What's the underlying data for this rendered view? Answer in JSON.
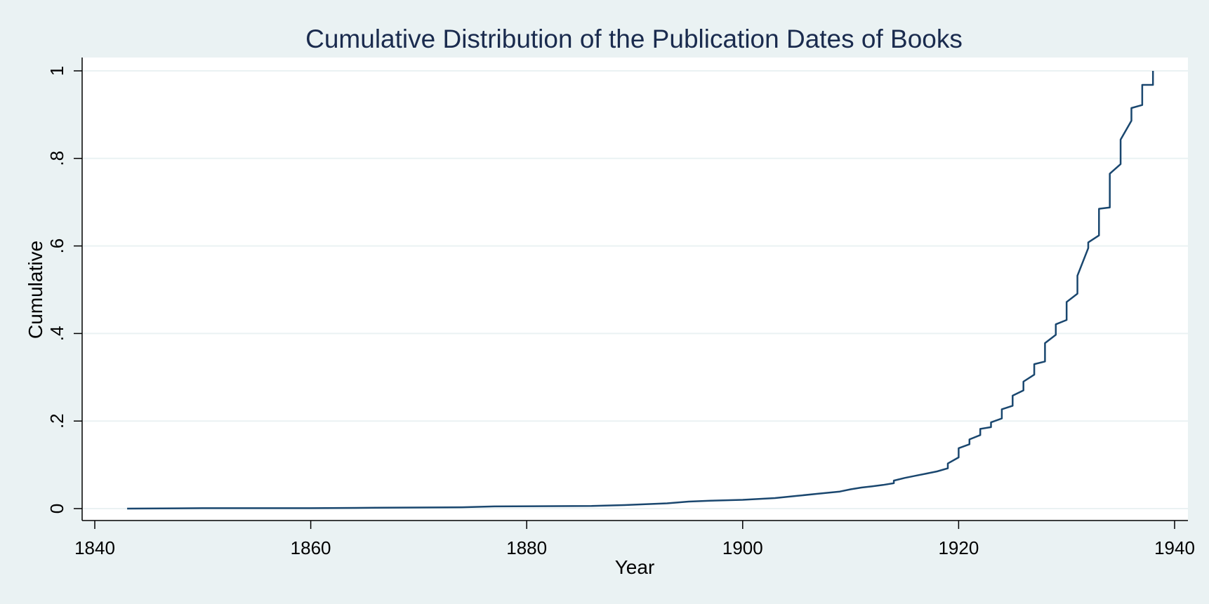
{
  "chart_data": {
    "type": "line",
    "title": "Cumulative Distribution of the Publication Dates of Books",
    "xlabel": "Year",
    "ylabel": "Cumulative",
    "xlim": [
      1840,
      1940
    ],
    "ylim": [
      0,
      1
    ],
    "xticks": [
      1840,
      1860,
      1880,
      1900,
      1920,
      1940
    ],
    "yticks": [
      {
        "value": 0,
        "label": "0"
      },
      {
        "value": 0.2,
        "label": ".2"
      },
      {
        "value": 0.4,
        "label": ".4"
      },
      {
        "value": 0.6,
        "label": ".6"
      },
      {
        "value": 0.8,
        "label": ".8"
      },
      {
        "value": 1,
        "label": "1"
      }
    ],
    "grid": true,
    "line_color": "#1a476f",
    "series": [
      {
        "x": [
          1843,
          1850,
          1860,
          1866,
          1874,
          1877,
          1886,
          1889,
          1891,
          1893,
          1894,
          1895,
          1897,
          1900,
          1903,
          1905,
          1907,
          1909,
          1910,
          1911,
          1912,
          1913,
          1914,
          1914,
          1915,
          1916,
          1917,
          1918,
          1919,
          1919,
          1920,
          1920,
          1921,
          1921,
          1922,
          1922,
          1923,
          1923,
          1924,
          1924,
          1925,
          1925,
          1926,
          1926,
          1927,
          1927,
          1928,
          1928,
          1929,
          1929,
          1930,
          1930,
          1931,
          1931,
          1932,
          1932,
          1933,
          1933,
          1934,
          1934,
          1935,
          1935,
          1936,
          1936,
          1937,
          1937,
          1938,
          1938
        ],
        "y": [
          0,
          0.001,
          0.001,
          0.002,
          0.003,
          0.005,
          0.006,
          0.008,
          0.01,
          0.012,
          0.014,
          0.016,
          0.018,
          0.02,
          0.024,
          0.029,
          0.034,
          0.039,
          0.044,
          0.048,
          0.051,
          0.054,
          0.058,
          0.064,
          0.07,
          0.075,
          0.08,
          0.085,
          0.092,
          0.103,
          0.117,
          0.138,
          0.147,
          0.158,
          0.168,
          0.182,
          0.186,
          0.197,
          0.206,
          0.227,
          0.235,
          0.258,
          0.27,
          0.29,
          0.306,
          0.33,
          0.336,
          0.378,
          0.397,
          0.421,
          0.431,
          0.472,
          0.491,
          0.532,
          0.595,
          0.608,
          0.624,
          0.685,
          0.688,
          0.765,
          0.787,
          0.843,
          0.886,
          0.915,
          0.922,
          0.968,
          0.968,
          1
        ]
      }
    ]
  }
}
